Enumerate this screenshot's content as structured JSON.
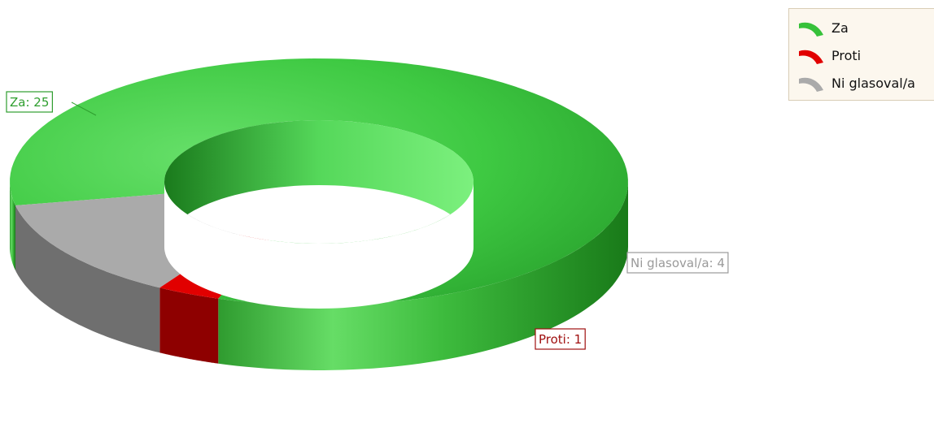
{
  "chart_data": {
    "type": "pie",
    "donut": true,
    "three_d": true,
    "title": "",
    "categories": [
      "Za",
      "Proti",
      "Ni glasoval/a"
    ],
    "values": [
      25,
      1,
      4
    ],
    "colors": [
      "#36c13a",
      "#e10000",
      "#aaaaaa"
    ],
    "data_labels": [
      "Za: 25",
      "Proti: 1",
      "Ni glasoval/a: 4"
    ],
    "label_colors": [
      "#2e9e2e",
      "#a01010",
      "#9a9a9a"
    ],
    "legend_position": "top-right"
  },
  "legend": {
    "items": [
      {
        "label": "Za",
        "color": "#36c13a"
      },
      {
        "label": "Proti",
        "color": "#e10000"
      },
      {
        "label": "Ni glasoval/a",
        "color": "#aaaaaa"
      }
    ]
  }
}
